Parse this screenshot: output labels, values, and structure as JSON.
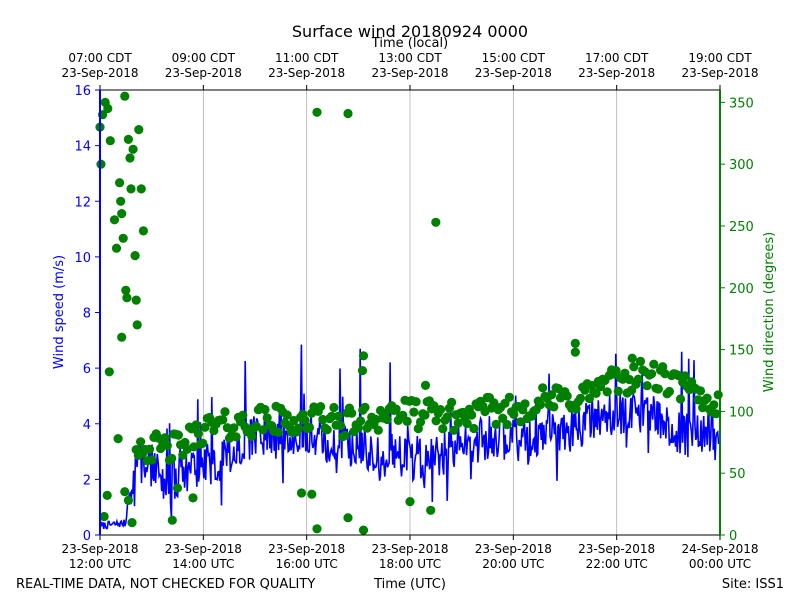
{
  "chart_data": {
    "type": "line+scatter",
    "title": "Surface wind 20180924 0000",
    "top_axis_label": "Time (local)",
    "xlabel": "Time (UTC)",
    "ylabel_left": "Wind speed (m/s)",
    "ylabel_right": "Wind direction (degrees)",
    "footer_left": "REAL-TIME DATA, NOT CHECKED FOR QUALITY",
    "footer_right": "Site: ISS1",
    "x_range_hours_utc": [
      12,
      24
    ],
    "ylim_left": [
      0,
      16
    ],
    "ylim_right": [
      0,
      360
    ],
    "yticks_left": [
      0,
      2,
      4,
      6,
      8,
      10,
      12,
      14,
      16
    ],
    "yticks_right": [
      0,
      50,
      100,
      150,
      200,
      250,
      300,
      350
    ],
    "xticks_bottom": [
      {
        "hour": 12,
        "time": "12:00 UTC",
        "date": "23-Sep-2018"
      },
      {
        "hour": 14,
        "time": "14:00 UTC",
        "date": "23-Sep-2018"
      },
      {
        "hour": 16,
        "time": "16:00 UTC",
        "date": "23-Sep-2018"
      },
      {
        "hour": 18,
        "time": "18:00 UTC",
        "date": "23-Sep-2018"
      },
      {
        "hour": 20,
        "time": "20:00 UTC",
        "date": "23-Sep-2018"
      },
      {
        "hour": 22,
        "time": "22:00 UTC",
        "date": "23-Sep-2018"
      },
      {
        "hour": 24,
        "time": "00:00 UTC",
        "date": "24-Sep-2018"
      }
    ],
    "xticks_top": [
      {
        "hour": 12,
        "time": "07:00 CDT",
        "date": "23-Sep-2018"
      },
      {
        "hour": 14,
        "time": "09:00 CDT",
        "date": "23-Sep-2018"
      },
      {
        "hour": 16,
        "time": "11:00 CDT",
        "date": "23-Sep-2018"
      },
      {
        "hour": 18,
        "time": "13:00 CDT",
        "date": "23-Sep-2018"
      },
      {
        "hour": 20,
        "time": "15:00 CDT",
        "date": "23-Sep-2018"
      },
      {
        "hour": 22,
        "time": "17:00 CDT",
        "date": "23-Sep-2018"
      },
      {
        "hour": 24,
        "time": "19:00 CDT",
        "date": "23-Sep-2018"
      }
    ],
    "grid": "vertical",
    "colors": {
      "speed": "#0000ff",
      "direction": "#008000",
      "grid": "#b0b0b0",
      "axes": "#000000"
    },
    "series": [
      {
        "name": "Wind speed (m/s)",
        "axis": "left",
        "style": "line",
        "x_hours": [
          12.0,
          12.5,
          12.6,
          12.7,
          13.0,
          13.3,
          13.6,
          14.0,
          14.3,
          14.6,
          15.0,
          15.3,
          15.6,
          16.0,
          16.3,
          16.6,
          17.0,
          17.3,
          17.6,
          18.0,
          18.3,
          18.6,
          19.0,
          19.3,
          19.6,
          20.0,
          20.3,
          20.6,
          21.0,
          21.3,
          21.6,
          22.0,
          22.3,
          22.6,
          23.0,
          23.3,
          23.6,
          24.0
        ],
        "values": [
          0.3,
          0.4,
          1.5,
          2.5,
          2.3,
          1.6,
          2.2,
          2.3,
          2.5,
          3.0,
          3.4,
          3.6,
          3.5,
          3.6,
          3.3,
          2.8,
          3.3,
          2.8,
          2.7,
          2.6,
          2.6,
          2.7,
          3.0,
          3.2,
          3.4,
          3.3,
          3.1,
          3.6,
          3.6,
          3.7,
          4.2,
          4.2,
          4.4,
          4.2,
          3.8,
          3.4,
          3.5,
          3.6
        ],
        "noise_amplitude": 0.9
      },
      {
        "name": "Wind direction (degrees)",
        "axis": "right",
        "style": "markers",
        "x_hours": [
          12.0,
          12.5,
          12.6,
          12.7,
          13.0,
          13.3,
          13.6,
          14.0,
          14.3,
          14.6,
          15.0,
          15.3,
          15.6,
          16.0,
          16.3,
          16.6,
          17.0,
          17.3,
          17.6,
          18.0,
          18.3,
          18.6,
          19.0,
          19.3,
          19.6,
          20.0,
          20.3,
          20.6,
          21.0,
          21.3,
          21.6,
          22.0,
          22.3,
          22.6,
          23.0,
          23.3,
          23.6,
          24.0
        ],
        "values": [
          20,
          60,
          72,
          75,
          70,
          70,
          72,
          86,
          88,
          88,
          92,
          93,
          92,
          93,
          96,
          90,
          92,
          95,
          100,
          98,
          97,
          97,
          95,
          98,
          100,
          101,
          105,
          108,
          110,
          112,
          118,
          124,
          128,
          130,
          123,
          119,
          110,
          106
        ],
        "noise_amplitude": 12,
        "outliers": [
          {
            "x": 12.0,
            "y": 330
          },
          {
            "x": 12.02,
            "y": 300
          },
          {
            "x": 12.05,
            "y": 340
          },
          {
            "x": 12.1,
            "y": 350
          },
          {
            "x": 12.15,
            "y": 345
          },
          {
            "x": 12.2,
            "y": 319
          },
          {
            "x": 12.28,
            "y": 255
          },
          {
            "x": 12.32,
            "y": 232
          },
          {
            "x": 12.38,
            "y": 285
          },
          {
            "x": 12.4,
            "y": 270
          },
          {
            "x": 12.42,
            "y": 260
          },
          {
            "x": 12.45,
            "y": 240
          },
          {
            "x": 12.48,
            "y": 355
          },
          {
            "x": 12.5,
            "y": 198
          },
          {
            "x": 12.52,
            "y": 192
          },
          {
            "x": 12.55,
            "y": 320
          },
          {
            "x": 12.58,
            "y": 305
          },
          {
            "x": 12.6,
            "y": 280
          },
          {
            "x": 12.64,
            "y": 312
          },
          {
            "x": 12.68,
            "y": 226
          },
          {
            "x": 12.7,
            "y": 190
          },
          {
            "x": 12.72,
            "y": 170
          },
          {
            "x": 12.75,
            "y": 328
          },
          {
            "x": 12.8,
            "y": 280
          },
          {
            "x": 12.84,
            "y": 246
          },
          {
            "x": 12.42,
            "y": 160
          },
          {
            "x": 12.18,
            "y": 132
          },
          {
            "x": 12.35,
            "y": 78
          },
          {
            "x": 12.48,
            "y": 35
          },
          {
            "x": 12.55,
            "y": 28
          },
          {
            "x": 12.62,
            "y": 10
          },
          {
            "x": 12.08,
            "y": 15
          },
          {
            "x": 12.14,
            "y": 32
          },
          {
            "x": 16.2,
            "y": 342
          },
          {
            "x": 16.8,
            "y": 341
          },
          {
            "x": 18.5,
            "y": 253
          },
          {
            "x": 16.2,
            "y": 5
          },
          {
            "x": 16.8,
            "y": 14
          },
          {
            "x": 17.1,
            "y": 4
          },
          {
            "x": 15.9,
            "y": 34
          },
          {
            "x": 16.1,
            "y": 33
          },
          {
            "x": 17.1,
            "y": 145
          },
          {
            "x": 17.08,
            "y": 133
          },
          {
            "x": 18.0,
            "y": 27
          },
          {
            "x": 18.4,
            "y": 20
          },
          {
            "x": 13.4,
            "y": 12
          },
          {
            "x": 13.8,
            "y": 30
          },
          {
            "x": 13.5,
            "y": 38
          },
          {
            "x": 18.3,
            "y": 121
          },
          {
            "x": 21.2,
            "y": 155
          },
          {
            "x": 21.2,
            "y": 148
          },
          {
            "x": 22.3,
            "y": 143
          }
        ]
      }
    ]
  }
}
